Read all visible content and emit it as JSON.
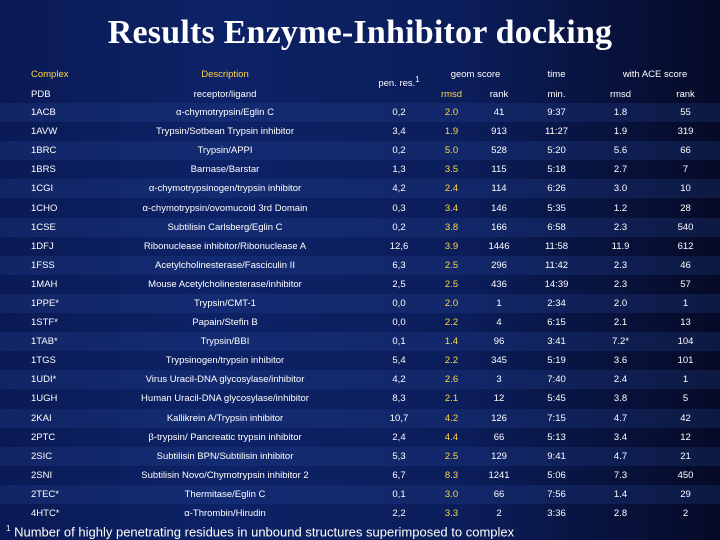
{
  "title": "Results Enzyme-Inhibitor docking",
  "header": {
    "complex": "Complex",
    "description": "Description",
    "pen_res": "pen. res.",
    "pen_res_sup": "1",
    "geom_score": "geom score",
    "time": "time",
    "ace_score": "with ACE score",
    "pdb": "PDB",
    "receptor_ligand": "receptor/ligand",
    "rmsd": "rmsd",
    "rank": "rank",
    "min": "min.",
    "rmsd2": "rmsd",
    "rank2": "rank"
  },
  "rows": [
    [
      "1ACB",
      "α-chymotrypsin/Eglin C",
      "0,2",
      "2.0",
      "41",
      "9:37",
      "1.8",
      "55"
    ],
    [
      "1AVW",
      "Trypsin/Sotbean Trypsin inhibitor",
      "3,4",
      "1.9",
      "913",
      "11:27",
      "1.9",
      "319"
    ],
    [
      "1BRC",
      "Trypsin/APPI",
      "0,2",
      "5.0",
      "528",
      "5:20",
      "5.6",
      "66"
    ],
    [
      "1BRS",
      "Barnase/Barstar",
      "1,3",
      "3.5",
      "115",
      "5:18",
      "2.7",
      "7"
    ],
    [
      "1CGI",
      "α-chymotrypsinogen/trypsin inhibitor",
      "4,2",
      "2.4",
      "114",
      "6:26",
      "3.0",
      "10"
    ],
    [
      "1CHO",
      "α-chymotrypsin/ovomucoid 3rd Domain",
      "0,3",
      "3.4",
      "146",
      "5:35",
      "1.2",
      "28"
    ],
    [
      "1CSE",
      "Subtilisin Carlsberg/Eglin C",
      "0,2",
      "3.8",
      "166",
      "6:58",
      "2.3",
      "540"
    ],
    [
      "1DFJ",
      "Ribonuclease inhibitor/Ribonuclease A",
      "12,6",
      "3.9",
      "1446",
      "11:58",
      "11.9",
      "612"
    ],
    [
      "1FSS",
      "Acetylcholinesterase/Fasciculin II",
      "6,3",
      "2.5",
      "296",
      "11:42",
      "2.3",
      "46"
    ],
    [
      "1MAH",
      "Mouse Acetylcholinesterase/inhibitor",
      "2,5",
      "2.5",
      "436",
      "14:39",
      "2.3",
      "57"
    ],
    [
      "1PPE*",
      "Trypsin/CMT-1",
      "0,0",
      "2.0",
      "1",
      "2:34",
      "2.0",
      "1"
    ],
    [
      "1STF*",
      "Papain/Stefin B",
      "0,0",
      "2.2",
      "4",
      "6:15",
      "2.1",
      "13"
    ],
    [
      "1TAB*",
      "Trypsin/BBI",
      "0,1",
      "1.4",
      "96",
      "3:41",
      "7.2*",
      "104"
    ],
    [
      "1TGS",
      "Trypsinogen/trypsin inhibitor",
      "5,4",
      "2.2",
      "345",
      "5:19",
      "3.6",
      "101"
    ],
    [
      "1UDI*",
      "Virus Uracil-DNA glycosylase/inhibitor",
      "4,2",
      "2.6",
      "3",
      "7:40",
      "2.4",
      "1"
    ],
    [
      "1UGH",
      "Human Uracil-DNA glycosylase/inhibitor",
      "8,3",
      "2.1",
      "12",
      "5:45",
      "3.8",
      "5"
    ],
    [
      "2KAI",
      "Kallikrein A/Trypsin inhibitor",
      "10,7",
      "4.2",
      "126",
      "7:15",
      "4.7",
      "42"
    ],
    [
      "2PTC",
      "β-trypsin/ Pancreatic trypsin inhibitor",
      "2,4",
      "4.4",
      "66",
      "5:13",
      "3.4",
      "12"
    ],
    [
      "2SIC",
      "Subtilisin BPN/Subtilisin inhibitor",
      "5,3",
      "2.5",
      "129",
      "9:41",
      "4.7",
      "21"
    ],
    [
      "2SNI",
      "Subtilisin Novo/Chymotrypsin inhibitor 2",
      "6,7",
      "8.3",
      "1241",
      "5:06",
      "7.3",
      "450"
    ],
    [
      "2TEC*",
      "Thermitase/Eglin C",
      "0,1",
      "3.0",
      "66",
      "7:56",
      "1.4",
      "29"
    ],
    [
      "4HTC*",
      "α-Thrombin/Hirudin",
      "2,2",
      "3.3",
      "2",
      "3:36",
      "2.8",
      "2"
    ]
  ],
  "footnote": {
    "marker": "1",
    "text": "Number of highly penetrating residues in unbound structures superimposed to complex"
  }
}
